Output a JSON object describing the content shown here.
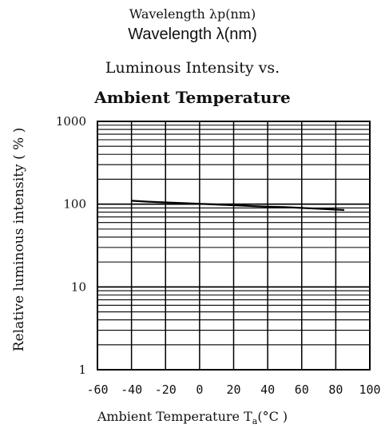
{
  "header": {
    "line1": "Wavelength λp(nm)",
    "line2": "Wavelength λ(nm)"
  },
  "chart_data": {
    "type": "line",
    "title_line1": "Luminous Intensity vs.",
    "title_line2": "Ambient Temperature",
    "xlabel_prefix": "Ambient Temperature T",
    "xlabel_sub": "a",
    "xlabel_suffix": "(°C )",
    "ylabel": "Relative luminous intensity ( % )",
    "xlim": [
      -60,
      100
    ],
    "ylim": [
      1,
      1000
    ],
    "yscale": "log",
    "grid": true,
    "x_ticks": [
      "-60",
      "-40",
      "-20",
      "0",
      "20",
      "40",
      "60",
      "80",
      "100"
    ],
    "y_ticks": [
      "1",
      "10",
      "100",
      "1000"
    ],
    "series": [
      {
        "x": [
          -40,
          -30,
          -20,
          -10,
          0,
          10,
          20,
          30,
          40,
          50,
          60,
          70,
          80,
          85
        ],
        "y": [
          110,
          107,
          105,
          103,
          101,
          99,
          97,
          95,
          93,
          92,
          90,
          88,
          86,
          85
        ]
      }
    ]
  }
}
